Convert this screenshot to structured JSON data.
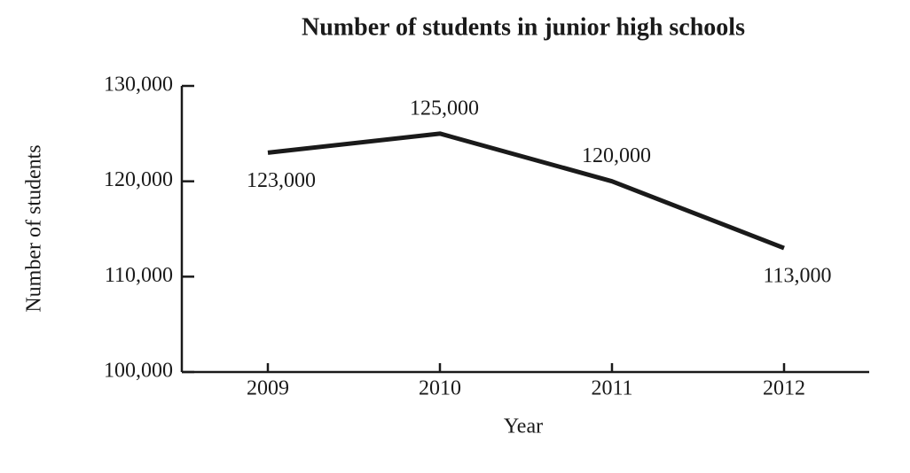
{
  "chart_data": {
    "type": "line",
    "title": "Number of students in junior high schools",
    "x_label": "Year",
    "y_label": "Number of students",
    "categories": [
      "2009",
      "2010",
      "2011",
      "2012"
    ],
    "values": [
      123000,
      125000,
      120000,
      113000
    ],
    "value_labels": [
      "123,000",
      "125,000",
      "120,000",
      "113,000"
    ],
    "color": "#1a1a1a",
    "ylim": [
      100000,
      130000
    ],
    "yticks": [
      {
        "value": 100000,
        "label": "100,000"
      },
      {
        "value": 110000,
        "label": "110,000"
      },
      {
        "value": 120000,
        "label": "120,000"
      },
      {
        "value": 130000,
        "label": "130,000"
      }
    ],
    "grid": false
  }
}
